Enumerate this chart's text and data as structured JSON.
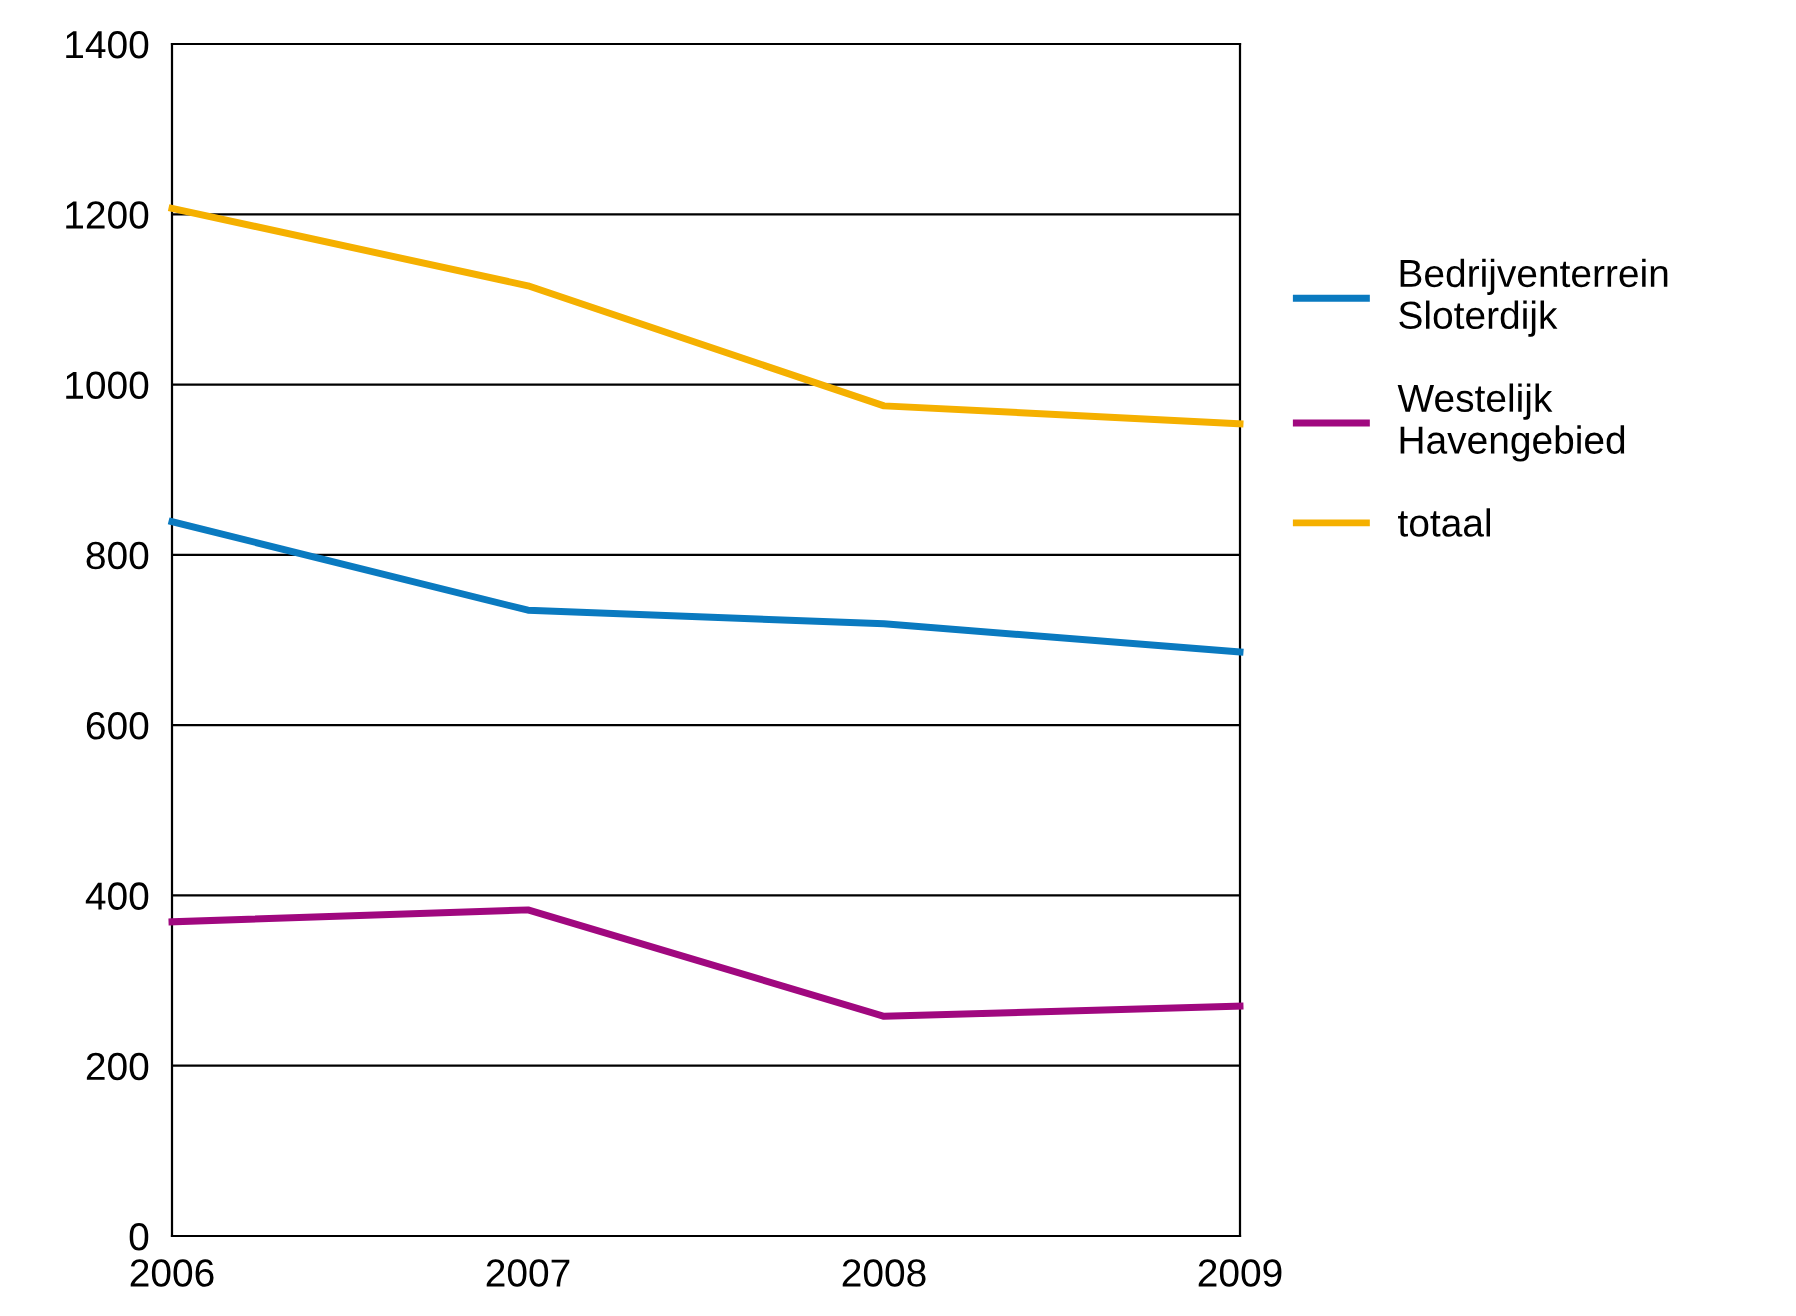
{
  "chart_data": {
    "type": "line",
    "x": [
      2006,
      2007,
      2008,
      2009
    ],
    "xlim": [
      2006,
      2009
    ],
    "xticks": [
      2006,
      2007,
      2008,
      2009
    ],
    "ylim": [
      0,
      1400
    ],
    "yticks": [
      0,
      200,
      400,
      600,
      800,
      1000,
      1200,
      1400
    ],
    "grid": "y",
    "legend": "right",
    "marker": "none",
    "line_style": "solid",
    "series": [
      {
        "name": "Bedrijventerrein\nSloterdijk",
        "color": "#0a7ac0",
        "values": [
          839,
          735,
          719,
          686
        ]
      },
      {
        "name": "Westelijk\nHavengebied",
        "color": "#a0087f",
        "values": [
          369,
          383,
          258,
          270
        ]
      },
      {
        "name": "totaal",
        "color": "#f5b000",
        "values": [
          1207,
          1116,
          975,
          954
        ]
      }
    ]
  }
}
